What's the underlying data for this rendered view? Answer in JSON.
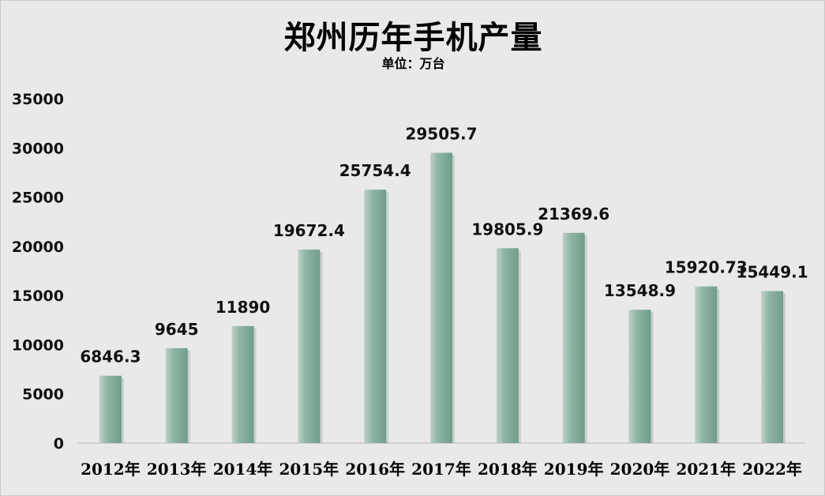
{
  "chart_data": {
    "type": "bar",
    "title": "郑州历年手机产量",
    "subtitle": "单位：万台",
    "categories": [
      "2012年",
      "2013年",
      "2014年",
      "2015年",
      "2016年",
      "2017年",
      "2018年",
      "2019年",
      "2020年",
      "2021年",
      "2022年"
    ],
    "values": [
      6846.3,
      9645,
      11890,
      19672.4,
      25754.4,
      29505.7,
      19805.9,
      21369.6,
      13548.9,
      15920.73,
      15449.1
    ],
    "data_labels": [
      "6846.3",
      "9645",
      "11890",
      "19672.4",
      "25754.4",
      "29505.7",
      "19805.9",
      "21369.6",
      "13548.9",
      "15920.73",
      "15449.1"
    ],
    "y_ticks": [
      "0",
      "5000",
      "10000",
      "15000",
      "20000",
      "25000",
      "30000",
      "35000"
    ],
    "ylim": [
      0,
      35000
    ],
    "grid": false,
    "legend": "none",
    "colors": {
      "bar_light": "#bcd3c8",
      "bar_dark": "#6f9d89",
      "background": "#e9e9e9",
      "axis": "#c9c9c9"
    }
  }
}
